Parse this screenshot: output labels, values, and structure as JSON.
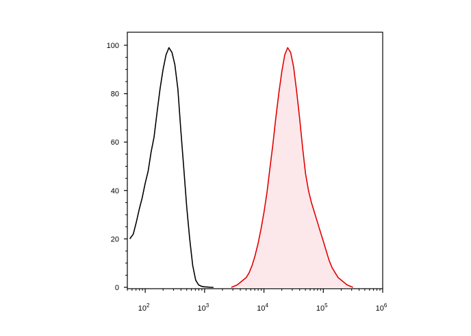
{
  "chart_data": {
    "type": "area",
    "title": "",
    "xlabel": "",
    "ylabel": "",
    "x_scale": "log",
    "xlim": [
      50,
      1000000
    ],
    "ylim": [
      0,
      100
    ],
    "grid": false,
    "x_ticks": [
      {
        "base": "10",
        "exp": "2"
      },
      {
        "base": "10",
        "exp": "3"
      },
      {
        "base": "10",
        "exp": "4"
      },
      {
        "base": "10",
        "exp": "5"
      },
      {
        "base": "10",
        "exp": "6"
      }
    ],
    "y_ticks": [
      "0",
      "20",
      "40",
      "60",
      "80",
      "100"
    ],
    "series": [
      {
        "color": "#000000",
        "fill": "none",
        "x": [
          55,
          63,
          71,
          79,
          89,
          100,
          112,
          126,
          141,
          158,
          178,
          200,
          224,
          251,
          282,
          316,
          355,
          398,
          447,
          501,
          562,
          631,
          708,
          794,
          891,
          1000,
          1122,
          1259,
          1413
        ],
        "y": [
          20,
          22,
          27,
          32,
          37,
          43,
          48,
          56,
          62,
          72,
          82,
          90,
          96,
          99,
          97,
          92,
          82,
          65,
          49,
          33,
          20,
          9,
          3,
          1,
          0.4,
          0.2,
          0.1,
          0,
          0
        ]
      },
      {
        "color": "#e00000",
        "fill": "#fce8ea",
        "x": [
          2818,
          3162,
          3548,
          3981,
          4467,
          5012,
          5623,
          6310,
          7079,
          7943,
          8913,
          10000,
          11220,
          12589,
          14125,
          15849,
          17783,
          19953,
          22387,
          25119,
          28184,
          31623,
          35481,
          39811,
          44668,
          50119,
          56234,
          63096,
          70795,
          79433,
          89125,
          100000,
          112202,
          125893,
          141254,
          158489,
          177828,
          199526,
          223872,
          251189,
          281838,
          316228
        ],
        "y": [
          0,
          0.5,
          1,
          2,
          3,
          4,
          6,
          9,
          13,
          18,
          24,
          31,
          39,
          49,
          59,
          70,
          80,
          89,
          96,
          99,
          97,
          91,
          81,
          70,
          58,
          47,
          40,
          35,
          31,
          27,
          23,
          19,
          15,
          11,
          8,
          6,
          4,
          3,
          2,
          1,
          0.5,
          0
        ]
      }
    ]
  }
}
